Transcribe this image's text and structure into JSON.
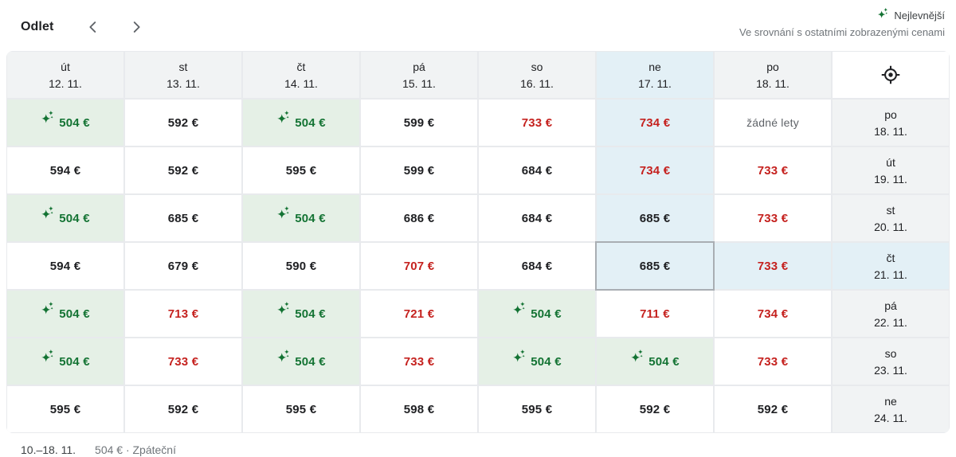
{
  "header": {
    "title": "Odlet",
    "legend": {
      "cheapest_label": "Nejlevnější",
      "subtitle": "Ve srovnání s ostatními zobrazenými cenami"
    }
  },
  "colors": {
    "cheapest_green": "#137333",
    "cheapest_bg": "#e5f0e6",
    "expensive_red": "#c5221f",
    "selected_blue_bg": "#e3f0f6",
    "header_gray_bg": "#f1f3f4"
  },
  "grid": {
    "columns": [
      {
        "day": "út",
        "date": "12. 11.",
        "highlighted": false
      },
      {
        "day": "st",
        "date": "13. 11.",
        "highlighted": false
      },
      {
        "day": "čt",
        "date": "14. 11.",
        "highlighted": false
      },
      {
        "day": "pá",
        "date": "15. 11.",
        "highlighted": false
      },
      {
        "day": "so",
        "date": "16. 11.",
        "highlighted": false
      },
      {
        "day": "ne",
        "date": "17. 11.",
        "highlighted": true
      },
      {
        "day": "po",
        "date": "18. 11.",
        "highlighted": false
      }
    ],
    "rows": [
      {
        "day": "po",
        "date": "18. 11.",
        "highlighted": false,
        "cells": [
          {
            "v": "504 €",
            "t": "low"
          },
          {
            "v": "592 €",
            "t": "mid"
          },
          {
            "v": "504 €",
            "t": "low"
          },
          {
            "v": "599 €",
            "t": "mid"
          },
          {
            "v": "733 €",
            "t": "high"
          },
          {
            "v": "734 €",
            "t": "high",
            "hl": true
          },
          {
            "v": "žádné lety",
            "t": "none"
          }
        ]
      },
      {
        "day": "út",
        "date": "19. 11.",
        "highlighted": false,
        "cells": [
          {
            "v": "594 €",
            "t": "mid"
          },
          {
            "v": "592 €",
            "t": "mid"
          },
          {
            "v": "595 €",
            "t": "mid"
          },
          {
            "v": "599 €",
            "t": "mid"
          },
          {
            "v": "684 €",
            "t": "mid"
          },
          {
            "v": "734 €",
            "t": "high",
            "hl": true
          },
          {
            "v": "733 €",
            "t": "high"
          }
        ]
      },
      {
        "day": "st",
        "date": "20. 11.",
        "highlighted": false,
        "cells": [
          {
            "v": "504 €",
            "t": "low"
          },
          {
            "v": "685 €",
            "t": "mid"
          },
          {
            "v": "504 €",
            "t": "low"
          },
          {
            "v": "686 €",
            "t": "mid"
          },
          {
            "v": "684 €",
            "t": "mid"
          },
          {
            "v": "685 €",
            "t": "mid",
            "hl": true
          },
          {
            "v": "733 €",
            "t": "high"
          }
        ]
      },
      {
        "day": "čt",
        "date": "21. 11.",
        "highlighted": true,
        "cells": [
          {
            "v": "594 €",
            "t": "mid"
          },
          {
            "v": "679 €",
            "t": "mid"
          },
          {
            "v": "590 €",
            "t": "mid"
          },
          {
            "v": "707 €",
            "t": "high"
          },
          {
            "v": "684 €",
            "t": "mid"
          },
          {
            "v": "685 €",
            "t": "mid",
            "hl": true,
            "sel": true
          },
          {
            "v": "733 €",
            "t": "high",
            "hl": true
          }
        ]
      },
      {
        "day": "pá",
        "date": "22. 11.",
        "highlighted": false,
        "cells": [
          {
            "v": "504 €",
            "t": "low"
          },
          {
            "v": "713 €",
            "t": "high"
          },
          {
            "v": "504 €",
            "t": "low"
          },
          {
            "v": "721 €",
            "t": "high"
          },
          {
            "v": "504 €",
            "t": "low"
          },
          {
            "v": "711 €",
            "t": "high"
          },
          {
            "v": "734 €",
            "t": "high"
          }
        ]
      },
      {
        "day": "so",
        "date": "23. 11.",
        "highlighted": false,
        "cells": [
          {
            "v": "504 €",
            "t": "low"
          },
          {
            "v": "733 €",
            "t": "high"
          },
          {
            "v": "504 €",
            "t": "low"
          },
          {
            "v": "733 €",
            "t": "high"
          },
          {
            "v": "504 €",
            "t": "low"
          },
          {
            "v": "504 €",
            "t": "low"
          },
          {
            "v": "733 €",
            "t": "high"
          }
        ]
      },
      {
        "day": "ne",
        "date": "24. 11.",
        "highlighted": false,
        "cells": [
          {
            "v": "595 €",
            "t": "mid"
          },
          {
            "v": "592 €",
            "t": "mid"
          },
          {
            "v": "595 €",
            "t": "mid"
          },
          {
            "v": "598 €",
            "t": "mid"
          },
          {
            "v": "595 €",
            "t": "mid"
          },
          {
            "v": "592 €",
            "t": "mid"
          },
          {
            "v": "592 €",
            "t": "mid"
          }
        ]
      }
    ]
  },
  "footer": {
    "date_range": "10.–18. 11.",
    "price_summary": "504 € · Zpáteční"
  }
}
